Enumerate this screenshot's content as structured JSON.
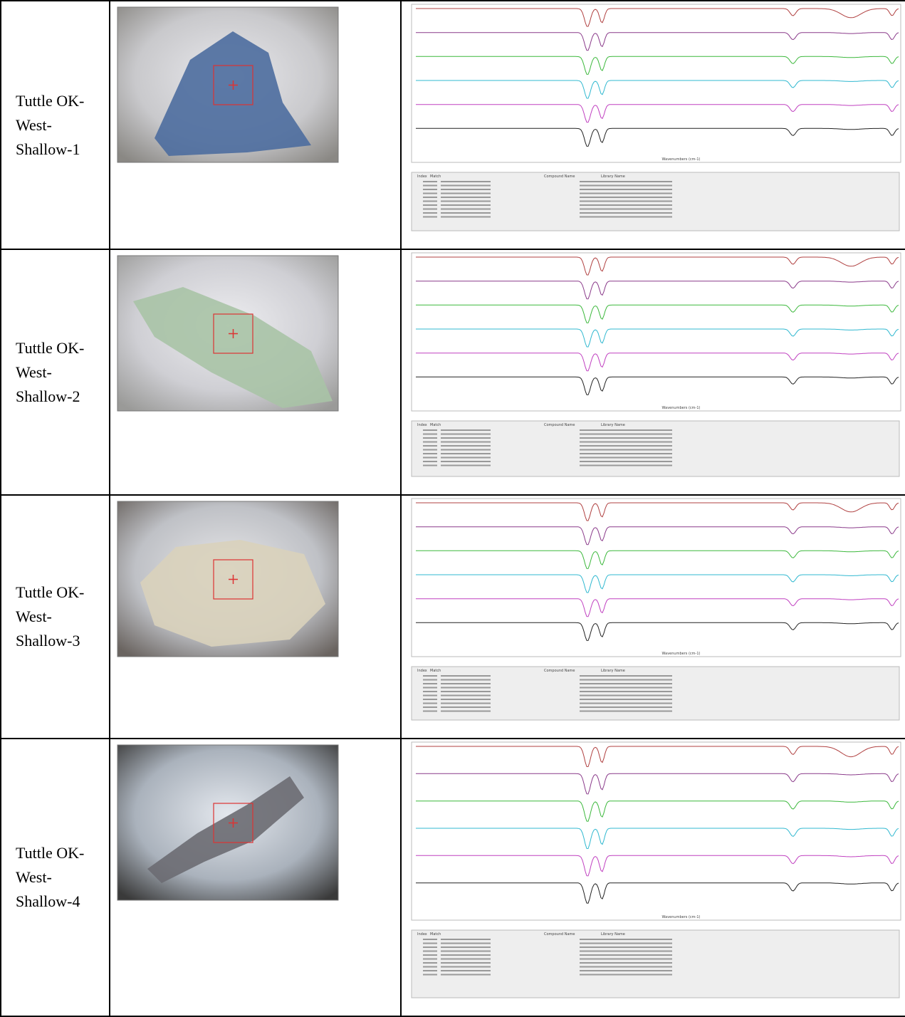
{
  "rows": [
    {
      "label": "Tuttle OK-West-Shallow-1"
    },
    {
      "label": "Tuttle OK-West-Shallow-2"
    },
    {
      "label": "Tuttle OK-West-Shallow-3"
    },
    {
      "label": "Tuttle OK-West-Shallow-4"
    }
  ],
  "spectrum": {
    "x_label": "Wavenumbers (cm-1)"
  },
  "results_headers": [
    "Index",
    "Match",
    "Compound Name",
    "Library Name"
  ]
}
